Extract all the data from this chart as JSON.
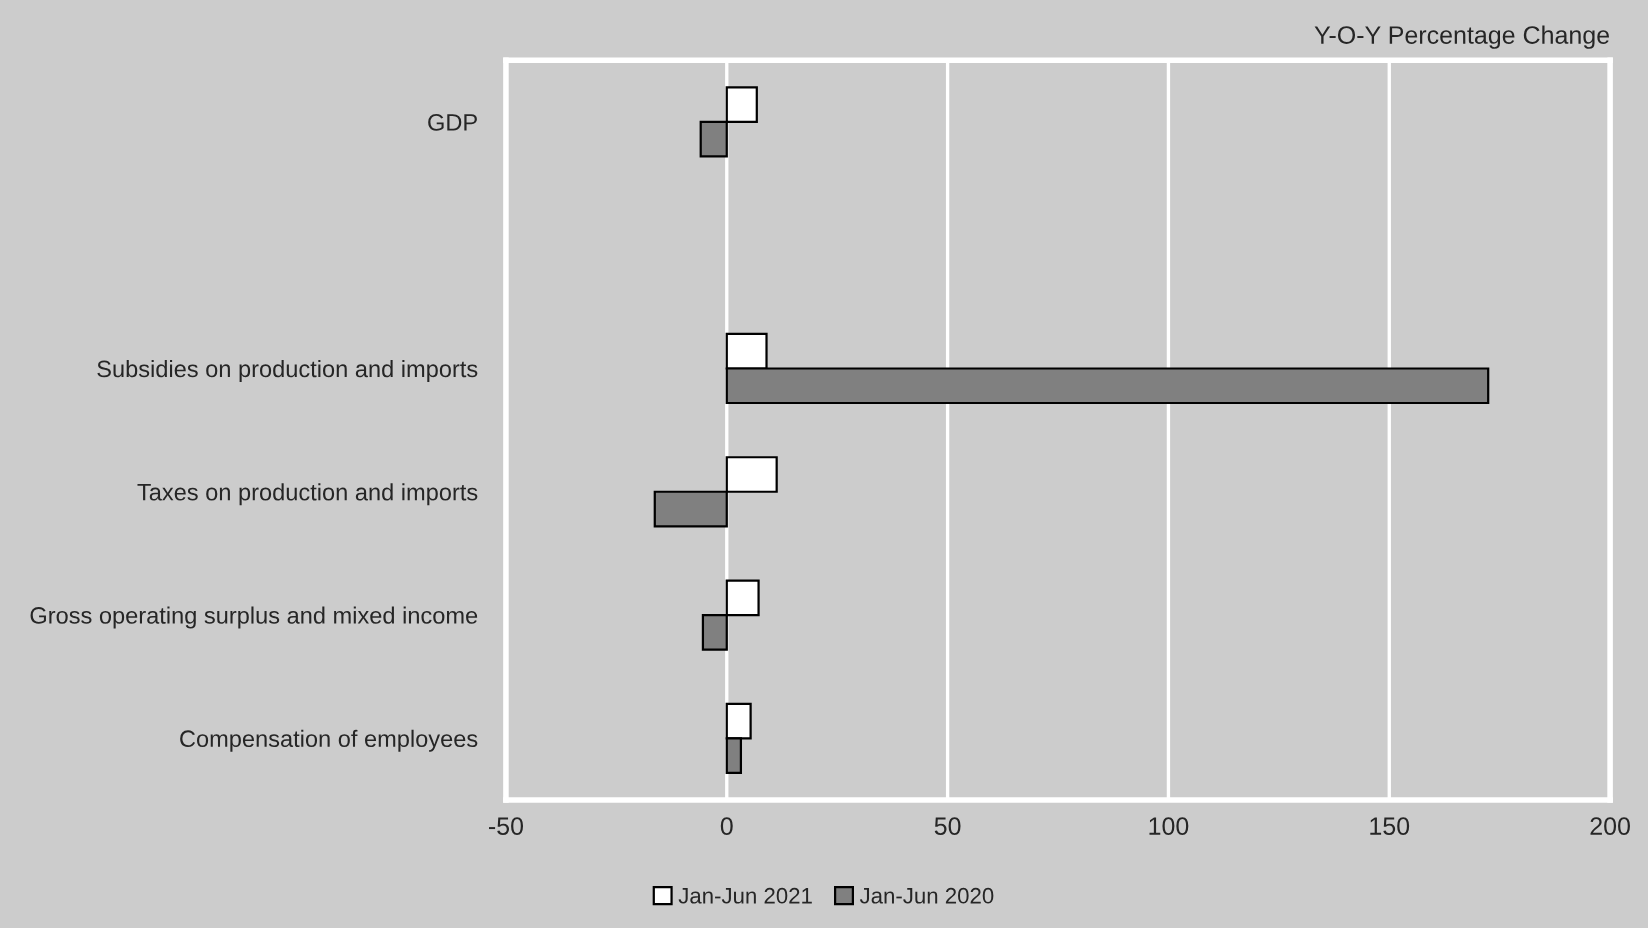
{
  "chart_data": {
    "type": "bar",
    "orientation": "horizontal",
    "xlabel": "Y-O-Y Percentage Change",
    "categories": [
      "GDP",
      null,
      "Subsidies on production and imports",
      "Taxes on production and imports",
      "Gross operating surplus and mixed income",
      "Compensation of employees"
    ],
    "series": [
      {
        "name": "Jan-Jun 2021",
        "color": "#ffffff",
        "values": [
          6.8,
          null,
          9,
          11.3,
          7.2,
          5.4
        ]
      },
      {
        "name": "Jan-Jun 2020",
        "color": "#808080",
        "values": [
          -5.9,
          null,
          172.4,
          -16.3,
          -5.4,
          3.2
        ]
      }
    ],
    "xlim": [
      -50,
      200
    ],
    "xticks": [
      -50,
      0,
      50,
      100,
      150,
      200
    ],
    "grid": "x",
    "legend": "bottom"
  }
}
